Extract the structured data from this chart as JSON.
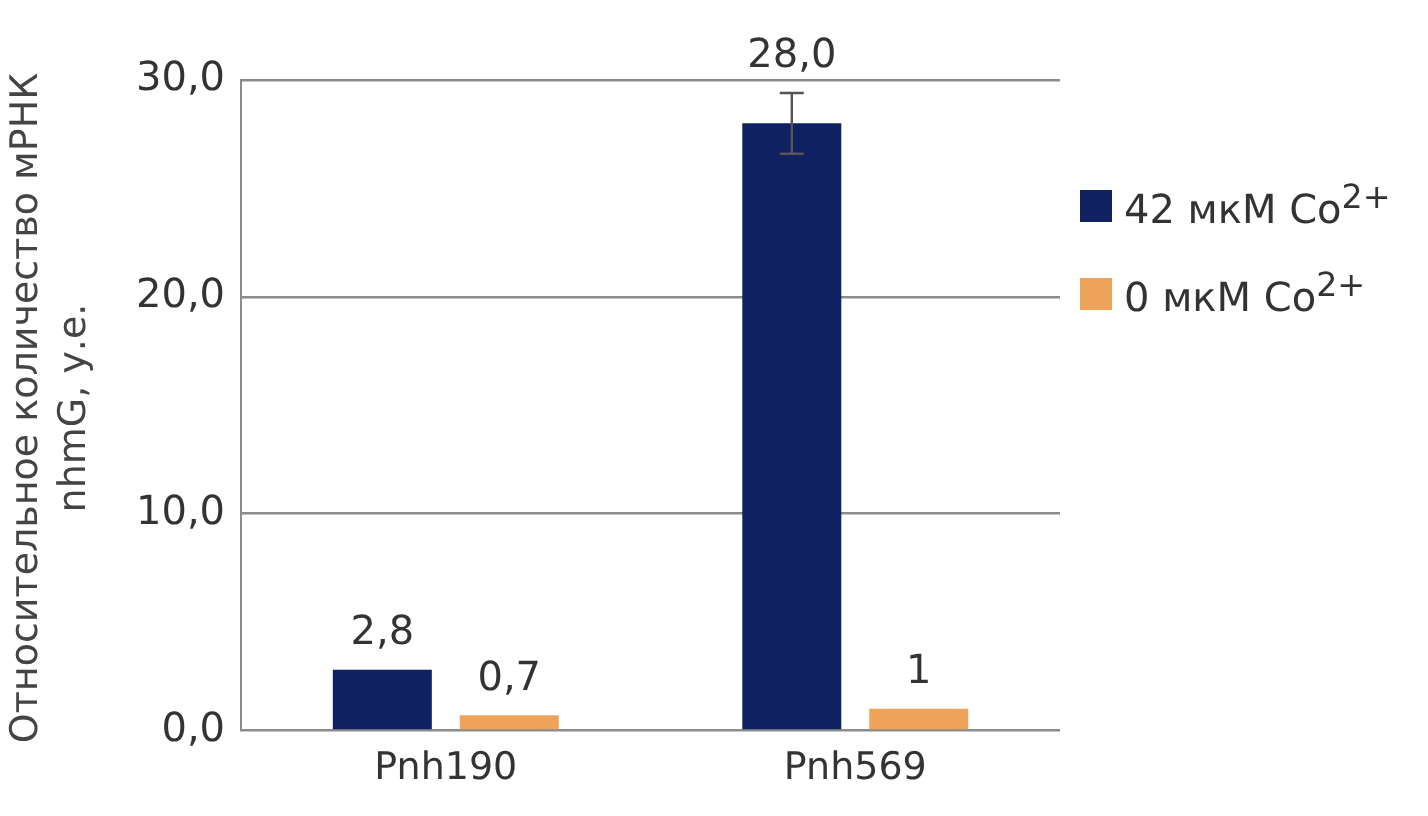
{
  "chart_data": {
    "type": "bar",
    "ylabel": "Относительное количество мРНК nhmG, у.е.",
    "categories": [
      "Pnh190",
      "Pnh569"
    ],
    "series": [
      {
        "name": "42 мкМ Co$^{2+}$",
        "color": "#0f2160",
        "values": [
          2.8,
          28.0
        ],
        "errors": [
          null,
          1.4
        ],
        "value_labels": [
          "2,8",
          "28,0"
        ]
      },
      {
        "name": "0 мкМ Co$^{2+}$",
        "color": "#eea35a",
        "values": [
          0.7,
          1
        ],
        "value_labels": [
          "0,7",
          "1"
        ]
      }
    ],
    "ylim": [
      0,
      30
    ],
    "yticks": [
      {
        "value": 0,
        "label": "0,0"
      },
      {
        "value": 10,
        "label": "10,0"
      },
      {
        "value": 20,
        "label": "20,0"
      },
      {
        "value": 30,
        "label": "30,0"
      }
    ],
    "grid": "y",
    "legend": "right"
  }
}
